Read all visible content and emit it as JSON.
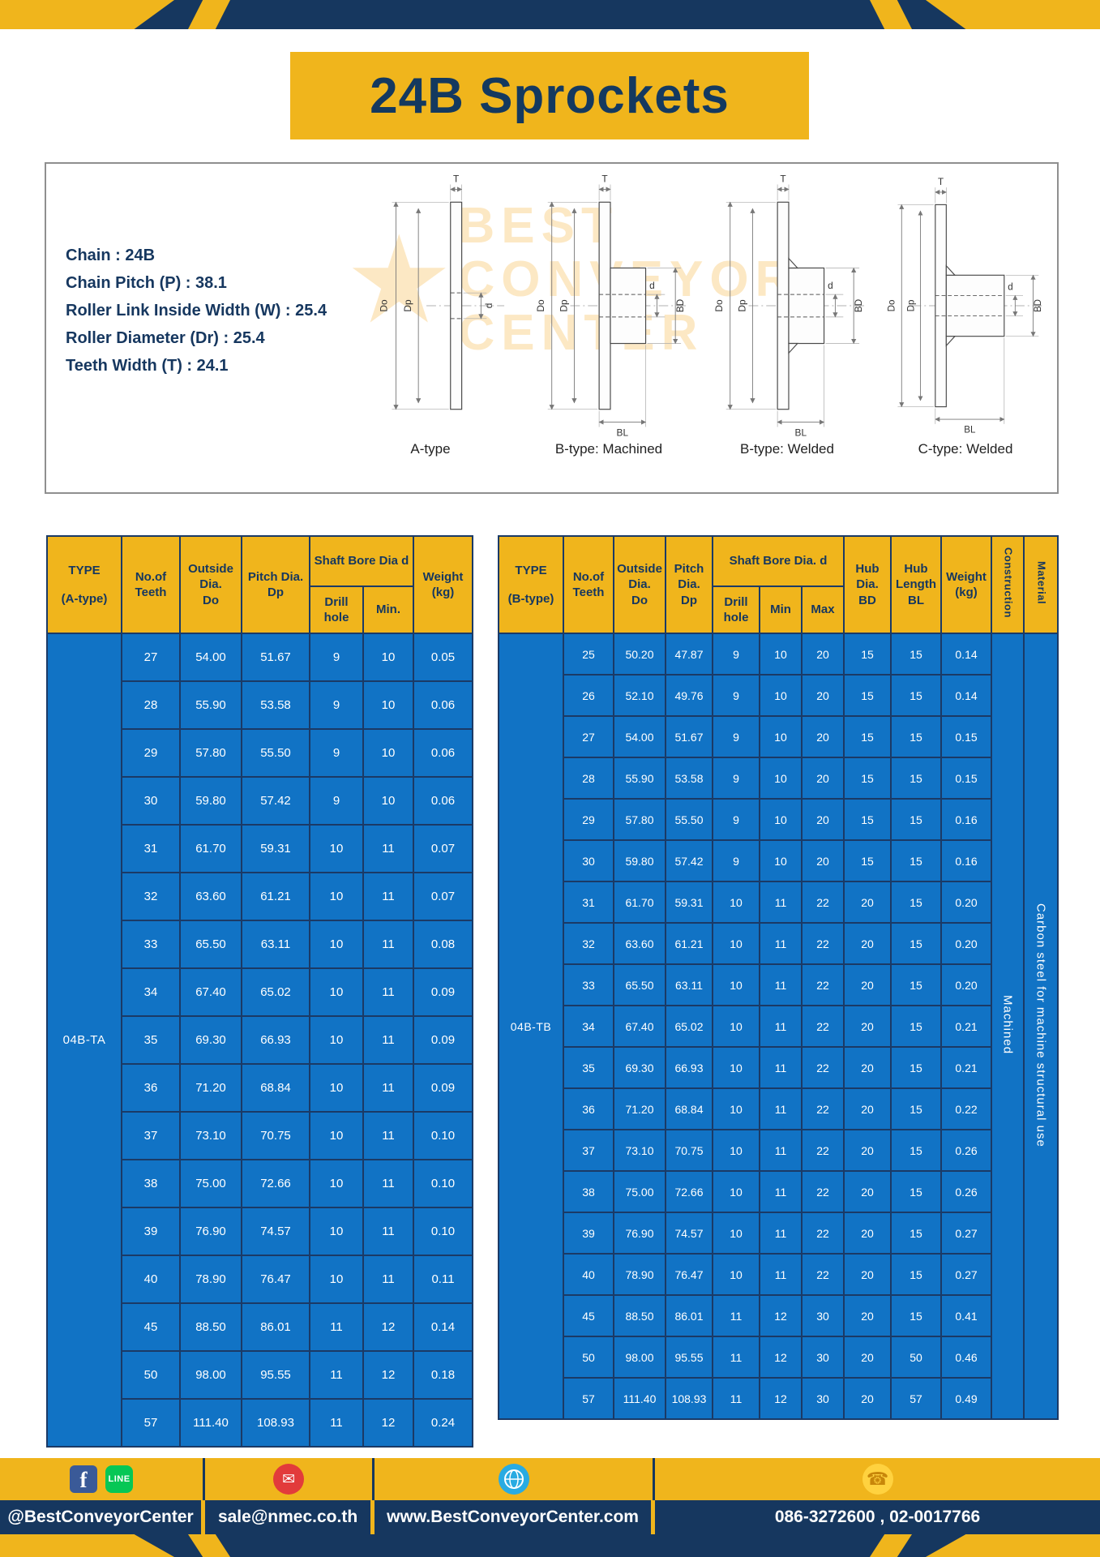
{
  "header": {
    "title": "24B Sprockets"
  },
  "specs": {
    "lines": [
      "Chain : 24B",
      "Chain Pitch (P) : 38.1",
      "Roller Link Inside Width (W) : 25.4",
      "Roller Diameter (Dr) : 25.4",
      "Teeth Width (T) : 24.1"
    ]
  },
  "diagram": {
    "captions": [
      "A-type",
      "B-type: Machined",
      "B-type: Welded",
      "C-type: Welded"
    ],
    "dims": {
      "t": "T",
      "do": "Do",
      "dp": "Dp",
      "d": "d",
      "bd": "BD",
      "bl": "BL"
    },
    "watermark": {
      "star": "★",
      "lines": [
        "BEST",
        "CONVEYOR",
        "CENTER"
      ]
    }
  },
  "table_a": {
    "type_line1": "TYPE",
    "type_line2": "(A-type)",
    "type_code": "04B-TA",
    "headers": {
      "teeth": "No.of\nTeeth",
      "outside": "Outside\nDia.\nDo",
      "pitch": "Pitch Dia.\nDp",
      "shaft_group": "Shaft Bore Dia d",
      "drill": "Drill hole",
      "min": "Min.",
      "weight": "Weight\n(kg)"
    },
    "rows": [
      [
        "27",
        "54.00",
        "51.67",
        "9",
        "10",
        "0.05"
      ],
      [
        "28",
        "55.90",
        "53.58",
        "9",
        "10",
        "0.06"
      ],
      [
        "29",
        "57.80",
        "55.50",
        "9",
        "10",
        "0.06"
      ],
      [
        "30",
        "59.80",
        "57.42",
        "9",
        "10",
        "0.06"
      ],
      [
        "31",
        "61.70",
        "59.31",
        "10",
        "11",
        "0.07"
      ],
      [
        "32",
        "63.60",
        "61.21",
        "10",
        "11",
        "0.07"
      ],
      [
        "33",
        "65.50",
        "63.11",
        "10",
        "11",
        "0.08"
      ],
      [
        "34",
        "67.40",
        "65.02",
        "10",
        "11",
        "0.09"
      ],
      [
        "35",
        "69.30",
        "66.93",
        "10",
        "11",
        "0.09"
      ],
      [
        "36",
        "71.20",
        "68.84",
        "10",
        "11",
        "0.09"
      ],
      [
        "37",
        "73.10",
        "70.75",
        "10",
        "11",
        "0.10"
      ],
      [
        "38",
        "75.00",
        "72.66",
        "10",
        "11",
        "0.10"
      ],
      [
        "39",
        "76.90",
        "74.57",
        "10",
        "11",
        "0.10"
      ],
      [
        "40",
        "78.90",
        "76.47",
        "10",
        "11",
        "0.11"
      ],
      [
        "45",
        "88.50",
        "86.01",
        "11",
        "12",
        "0.14"
      ],
      [
        "50",
        "98.00",
        "95.55",
        "11",
        "12",
        "0.18"
      ],
      [
        "57",
        "111.40",
        "108.93",
        "11",
        "12",
        "0.24"
      ]
    ]
  },
  "table_b": {
    "type_line1": "TYPE",
    "type_line2": "(B-type)",
    "type_code": "04B-TB",
    "headers": {
      "teeth": "No.of\nTeeth",
      "outside": "Outside\nDia.\nDo",
      "pitch": "Pitch\nDia.\nDp",
      "shaft_group": "Shaft Bore Dia. d",
      "drill": "Drill hole",
      "min": "Min",
      "max": "Max",
      "hub_dia": "Hub\nDia.\nBD",
      "hub_len": "Hub\nLength\nBL",
      "weight": "Weight\n(kg)",
      "construction": "Construction",
      "material": "Material"
    },
    "merged_trail": [
      "Machined",
      "Carbon steel for machine structural use"
    ],
    "rows": [
      [
        "25",
        "50.20",
        "47.87",
        "9",
        "10",
        "20",
        "15",
        "15",
        "0.14"
      ],
      [
        "26",
        "52.10",
        "49.76",
        "9",
        "10",
        "20",
        "15",
        "15",
        "0.14"
      ],
      [
        "27",
        "54.00",
        "51.67",
        "9",
        "10",
        "20",
        "15",
        "15",
        "0.15"
      ],
      [
        "28",
        "55.90",
        "53.58",
        "9",
        "10",
        "20",
        "15",
        "15",
        "0.15"
      ],
      [
        "29",
        "57.80",
        "55.50",
        "9",
        "10",
        "20",
        "15",
        "15",
        "0.16"
      ],
      [
        "30",
        "59.80",
        "57.42",
        "9",
        "10",
        "20",
        "15",
        "15",
        "0.16"
      ],
      [
        "31",
        "61.70",
        "59.31",
        "10",
        "11",
        "22",
        "20",
        "15",
        "0.20"
      ],
      [
        "32",
        "63.60",
        "61.21",
        "10",
        "11",
        "22",
        "20",
        "15",
        "0.20"
      ],
      [
        "33",
        "65.50",
        "63.11",
        "10",
        "11",
        "22",
        "20",
        "15",
        "0.20"
      ],
      [
        "34",
        "67.40",
        "65.02",
        "10",
        "11",
        "22",
        "20",
        "15",
        "0.21"
      ],
      [
        "35",
        "69.30",
        "66.93",
        "10",
        "11",
        "22",
        "20",
        "15",
        "0.21"
      ],
      [
        "36",
        "71.20",
        "68.84",
        "10",
        "11",
        "22",
        "20",
        "15",
        "0.22"
      ],
      [
        "37",
        "73.10",
        "70.75",
        "10",
        "11",
        "22",
        "20",
        "15",
        "0.26"
      ],
      [
        "38",
        "75.00",
        "72.66",
        "10",
        "11",
        "22",
        "20",
        "15",
        "0.26"
      ],
      [
        "39",
        "76.90",
        "74.57",
        "10",
        "11",
        "22",
        "20",
        "15",
        "0.27"
      ],
      [
        "40",
        "78.90",
        "76.47",
        "10",
        "11",
        "22",
        "20",
        "15",
        "0.27"
      ],
      [
        "45",
        "88.50",
        "86.01",
        "11",
        "12",
        "30",
        "20",
        "15",
        "0.41"
      ],
      [
        "50",
        "98.00",
        "95.55",
        "11",
        "12",
        "30",
        "20",
        "50",
        "0.46"
      ],
      [
        "57",
        "111.40",
        "108.93",
        "11",
        "12",
        "30",
        "20",
        "57",
        "0.49"
      ]
    ]
  },
  "footer": {
    "social_handle": "@BestConveyorCenter",
    "email": "sale@nmec.co.th",
    "website": "www.BestConveyorCenter.com",
    "phones": "086-3272600 , 02-0017766",
    "icons": {
      "facebook": "f",
      "line": "LINE",
      "email": "✉",
      "phone": "☎"
    }
  },
  "colors": {
    "brand_yellow": "#F0B51C",
    "navy": "#16375F",
    "cell_blue": "#1173C5",
    "border_navy": "#1B3A66",
    "email_red": "#E23B3B",
    "line_green": "#06C755",
    "facebook_blue": "#3A5A98",
    "globe_blue": "#29ABE2",
    "watermark_orange": "#F7A81E"
  }
}
